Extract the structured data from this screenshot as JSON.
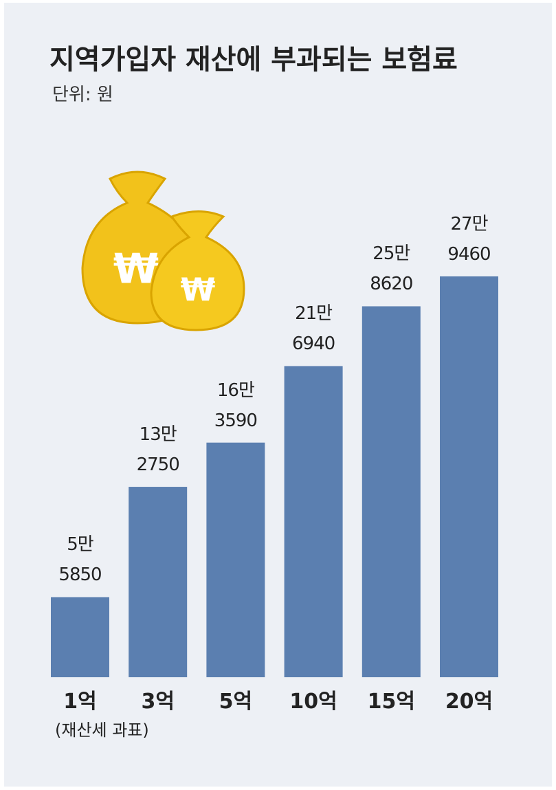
{
  "chart_data": {
    "type": "bar",
    "title": "지역가입자 재산에 부과되는 보험료",
    "subtitle": "단위: 원",
    "categories": [
      "1억",
      "3억",
      "5억",
      "10억",
      "15억",
      "20억"
    ],
    "x_label": "(재산세 과표)",
    "values": [
      55850,
      132750,
      163590,
      216940,
      258620,
      279460
    ],
    "value_labels": [
      "5만\n5850",
      "13만\n2750",
      "16만\n3590",
      "21만\n6940",
      "25만\n8620",
      "27만\n9460"
    ],
    "color": "#5b7fb0"
  }
}
